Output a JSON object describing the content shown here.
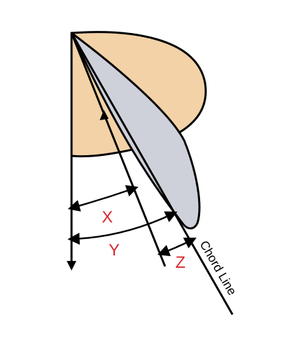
{
  "labels": {
    "x": "X",
    "y": "Y",
    "z": "Z",
    "chord": "Chord Line"
  },
  "colors": {
    "disc_fill": "#f3d2a7",
    "blade_fill": "#cfd1da",
    "stroke": "#000000",
    "label_red": "#d9262f"
  }
}
